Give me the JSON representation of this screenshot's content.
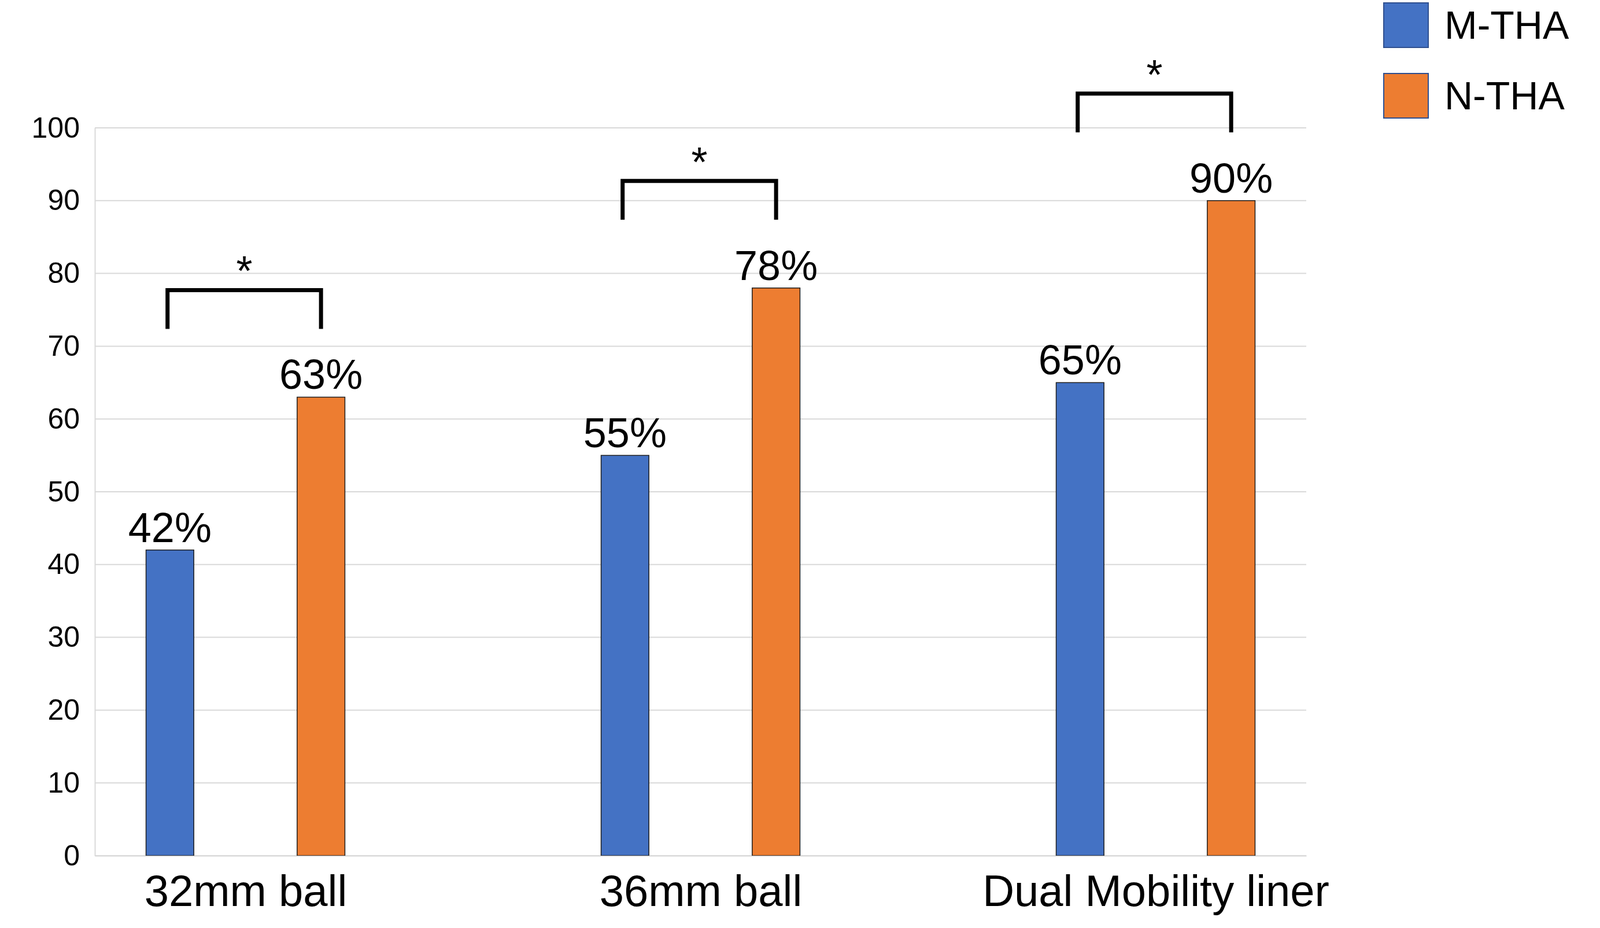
{
  "chart_data": {
    "type": "bar",
    "categories": [
      "32mm ball",
      "36mm ball",
      "Dual Mobility liner"
    ],
    "series": [
      {
        "name": "M-THA",
        "color": "#4472c4",
        "values": [
          42,
          55,
          65
        ],
        "value_labels": [
          "42%",
          "55%",
          "65%"
        ]
      },
      {
        "name": "N-THA",
        "color": "#ed7d31",
        "values": [
          63,
          78,
          90
        ],
        "value_labels": [
          "63%",
          "78%",
          "90%"
        ]
      }
    ],
    "annotations": [
      "*",
      "*",
      "*"
    ],
    "ylim": [
      0,
      100
    ],
    "yticks": [
      0,
      10,
      20,
      30,
      40,
      50,
      60,
      70,
      80,
      90,
      100
    ],
    "grid": true,
    "legend": "top-right",
    "data_labels": true
  }
}
